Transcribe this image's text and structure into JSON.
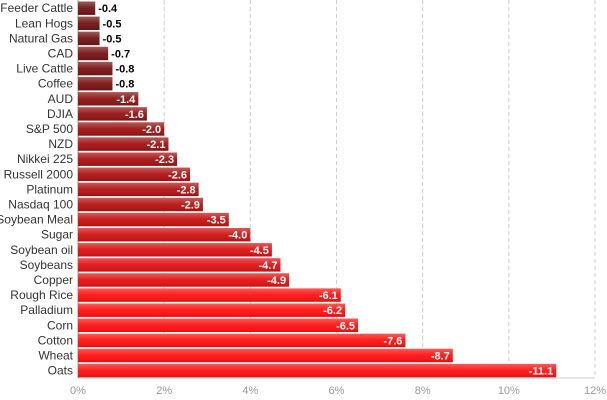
{
  "chart_data": {
    "type": "bar",
    "orientation": "horizontal",
    "categories": [
      "Feeder Cattle",
      "Lean Hogs",
      "Natural Gas",
      "CAD",
      "Live Cattle",
      "Coffee",
      "AUD",
      "DJIA",
      "S&P 500",
      "NZD",
      "Nikkei 225",
      "Russell 2000",
      "Platinum",
      "Nasdaq 100",
      "Soybean Meal",
      "Sugar",
      "Soybean oil",
      "Soybeans",
      "Copper",
      "Rough Rice",
      "Palladium",
      "Corn",
      "Cotton",
      "Wheat",
      "Oats"
    ],
    "values": [
      -0.4,
      -0.5,
      -0.5,
      -0.7,
      -0.8,
      -0.8,
      -1.4,
      -1.6,
      -2.0,
      -2.1,
      -2.3,
      -2.6,
      -2.8,
      -2.9,
      -3.5,
      -4.0,
      -4.5,
      -4.7,
      -4.9,
      -6.1,
      -6.2,
      -6.5,
      -7.6,
      -8.7,
      -11.1
    ],
    "value_labels": [
      "-0.4",
      "-0.5",
      "-0.5",
      "-0.7",
      "-0.8",
      "-0.8",
      "-1.4",
      "-1.6",
      "-2.0",
      "-2.1",
      "-2.3",
      "-2.6",
      "-2.8",
      "-2.9",
      "-3.5",
      "-4.0",
      "-4.5",
      "-4.7",
      "-4.9",
      "-6.1",
      "-6.2",
      "-6.5",
      "-7.6",
      "-8.7",
      "-11.1"
    ],
    "x_ticks": [
      "0%",
      "2%",
      "4%",
      "6%",
      "8%",
      "10%",
      "12%"
    ],
    "x_tick_values": [
      0,
      2,
      4,
      6,
      8,
      10,
      12
    ],
    "xlim": [
      0,
      12
    ],
    "title": "",
    "xlabel": "",
    "ylabel": "",
    "grid": "vertical dashed",
    "colors": {
      "bar_dark": "#5a1414",
      "bar_bright": "#ff1010",
      "grid": "#cccccc",
      "axis": "#999999"
    }
  }
}
